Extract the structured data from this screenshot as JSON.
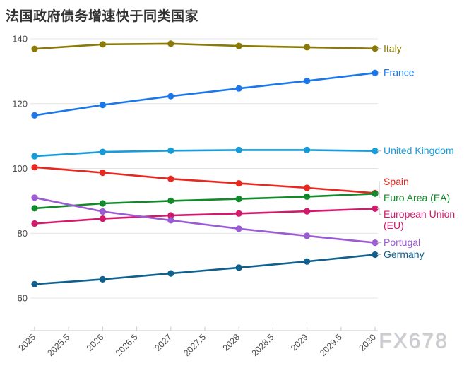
{
  "title": "法国政府债务增速快于同类国家",
  "watermark": "FX678",
  "chart_data": {
    "type": "line",
    "x": [
      2025,
      2026,
      2027,
      2028,
      2029,
      2030
    ],
    "x_tick_labels": [
      "2025",
      "2025.5",
      "2026",
      "2026.5",
      "2027",
      "2027.5",
      "2028",
      "2028.5",
      "2029",
      "2029.5",
      "2030"
    ],
    "y_ticks": [
      140,
      120,
      100,
      80,
      60
    ],
    "xlim": [
      2025,
      2030
    ],
    "ylim": [
      50,
      143
    ],
    "grid": "horizontal",
    "legend_position": "right-edge-direct-labels",
    "series": [
      {
        "name": "Italy",
        "color": "#8c7a06",
        "values": [
          136.9,
          138.3,
          138.5,
          137.8,
          137.4,
          137.0
        ]
      },
      {
        "name": "France",
        "color": "#1b78ec",
        "values": [
          116.4,
          119.6,
          122.3,
          124.7,
          127.0,
          129.5
        ]
      },
      {
        "name": "United Kingdom",
        "color": "#189cd9",
        "values": [
          103.8,
          105.1,
          105.5,
          105.7,
          105.7,
          105.4
        ]
      },
      {
        "name": "Spain",
        "color": "#e8281e",
        "values": [
          100.4,
          98.7,
          96.8,
          95.4,
          94.0,
          92.4
        ]
      },
      {
        "name": "Euro Area (EA)",
        "color": "#128a2b",
        "values": [
          87.7,
          89.2,
          90.0,
          90.6,
          91.3,
          92.2
        ]
      },
      {
        "name": "European Union (EU)",
        "color": "#d2196b",
        "values": [
          83.0,
          84.5,
          85.5,
          86.1,
          86.8,
          87.6
        ]
      },
      {
        "name": "Portugal",
        "color": "#9b5bd3",
        "values": [
          91.0,
          86.7,
          84.0,
          81.4,
          79.2,
          77.1
        ]
      },
      {
        "name": "Germany",
        "color": "#0e608f",
        "values": [
          64.3,
          65.8,
          67.6,
          69.4,
          71.3,
          73.4
        ]
      }
    ],
    "style_colors": {
      "gridline": "#e4e4e4",
      "baseline": "#c9c9c9",
      "tick_label": "#494949",
      "leader_line": "#bdbdbd",
      "title": "#333333"
    }
  }
}
